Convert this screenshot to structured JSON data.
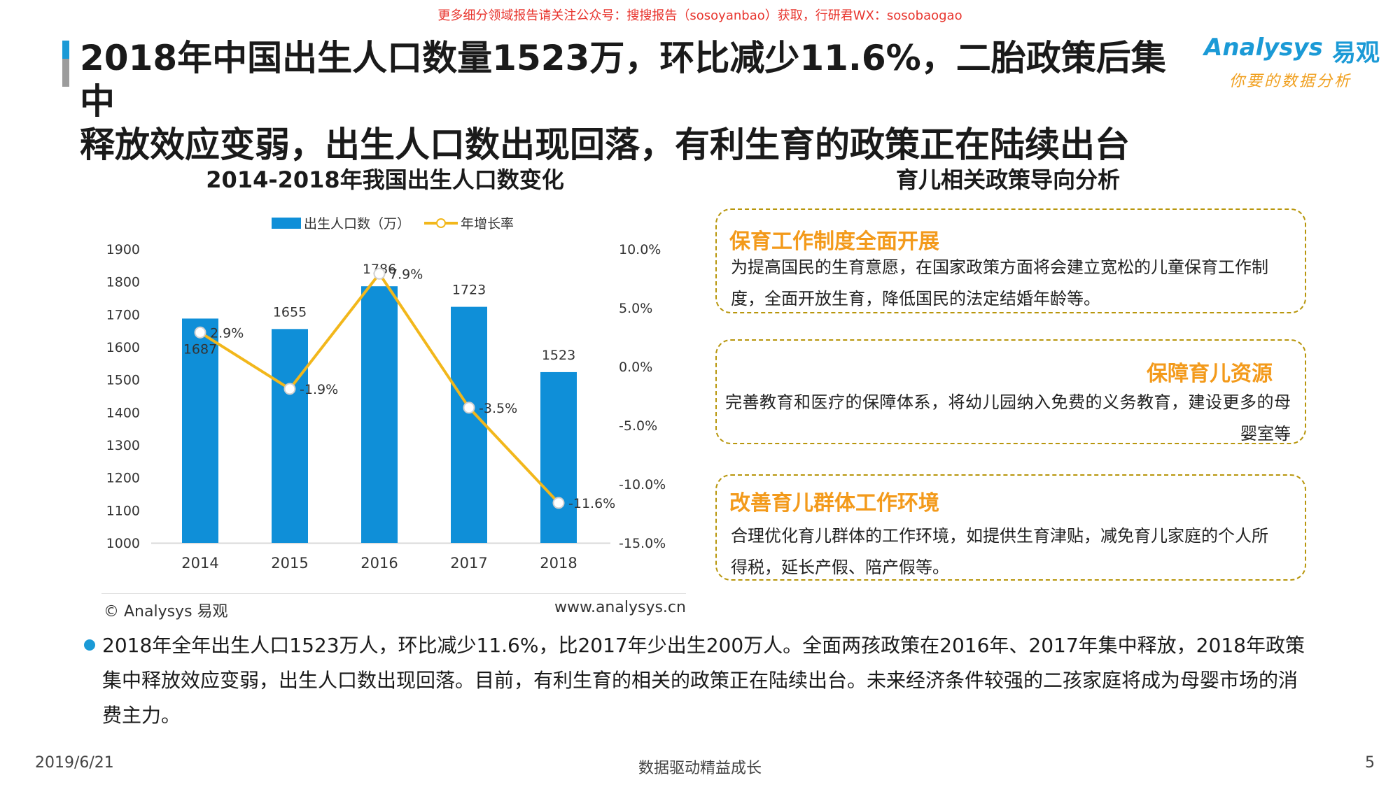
{
  "top_note": "更多细分领域报告请关注公众号：搜搜报告（sosoyanbao）获取，行研君WX：sosobaogao",
  "title": {
    "line1": "2018年中国出生人口数量1523万，环比减少11.6%，二胎政策后集中",
    "line2": "释放效应变弱，出生人口数出现回落，有利生育的政策正在陆续出台"
  },
  "logo": {
    "en": "Analysys",
    "cn": "易观",
    "slogan": "你要的数据分析"
  },
  "chart_data": {
    "type": "bar",
    "title": "2014-2018年我国出生人口数变化",
    "categories": [
      "2014",
      "2015",
      "2016",
      "2017",
      "2018"
    ],
    "series": [
      {
        "name": "出生人口数（万）",
        "type": "bar",
        "axis": "left",
        "color": "#0f8fd8",
        "values": [
          1687,
          1655,
          1786,
          1723,
          1523
        ],
        "labels": [
          "1687",
          "1655",
          "1786",
          "1723",
          "1523"
        ]
      },
      {
        "name": "年增长率",
        "type": "line",
        "axis": "right",
        "color": "#f2b71b",
        "values": [
          2.9,
          -1.9,
          7.9,
          -3.5,
          -11.6
        ],
        "labels": [
          "2.9%",
          "-1.9%",
          "7.9%",
          "-3.5%",
          "-11.6%"
        ]
      }
    ],
    "y_left": {
      "min": 1000,
      "max": 1900,
      "ticks": [
        "1000",
        "1100",
        "1200",
        "1300",
        "1400",
        "1500",
        "1600",
        "1700",
        "1800",
        "1900"
      ]
    },
    "y_right": {
      "min": -15,
      "max": 10,
      "ticks": [
        "-15.0%",
        "-10.0%",
        "-5.0%",
        "0.0%",
        "5.0%",
        "10.0%"
      ]
    },
    "legend": "top",
    "grid": false,
    "source": "© Analysys 易观",
    "url": "www.analysys.cn"
  },
  "policy": {
    "title": "育儿相关政策导向分析",
    "items": [
      {
        "heading": "保育工作制度全面开展",
        "text": "为提高国民的生育意愿，在国家政策方面将会建立宽松的儿童保育工作制度，全面开放生育，降低国民的法定结婚年龄等。"
      },
      {
        "heading": "保障育儿资源",
        "text": "完善教育和医疗的保障体系，将幼儿园纳入免费的义务教育，建设更多的母婴室等"
      },
      {
        "heading": "改善育儿群体工作环境",
        "text": "合理优化育儿群体的工作环境，如提供生育津贴，减免育儿家庭的个人所得税，延长产假、陪产假等。"
      }
    ]
  },
  "summary": "2018年全年出生人口1523万人，环比减少11.6%，比2017年少出生200万人。全面两孩政策在2016年、2017年集中释放，2018年政策集中释放效应变弱，出生人口数出现回落。目前，有利生育的相关的政策正在陆续出台。未来经济条件较强的二孩家庭将成为母婴市场的消费主力。",
  "footer": {
    "date": "2019/6/21",
    "slogan": "数据驱动精益成长",
    "page": "5"
  }
}
